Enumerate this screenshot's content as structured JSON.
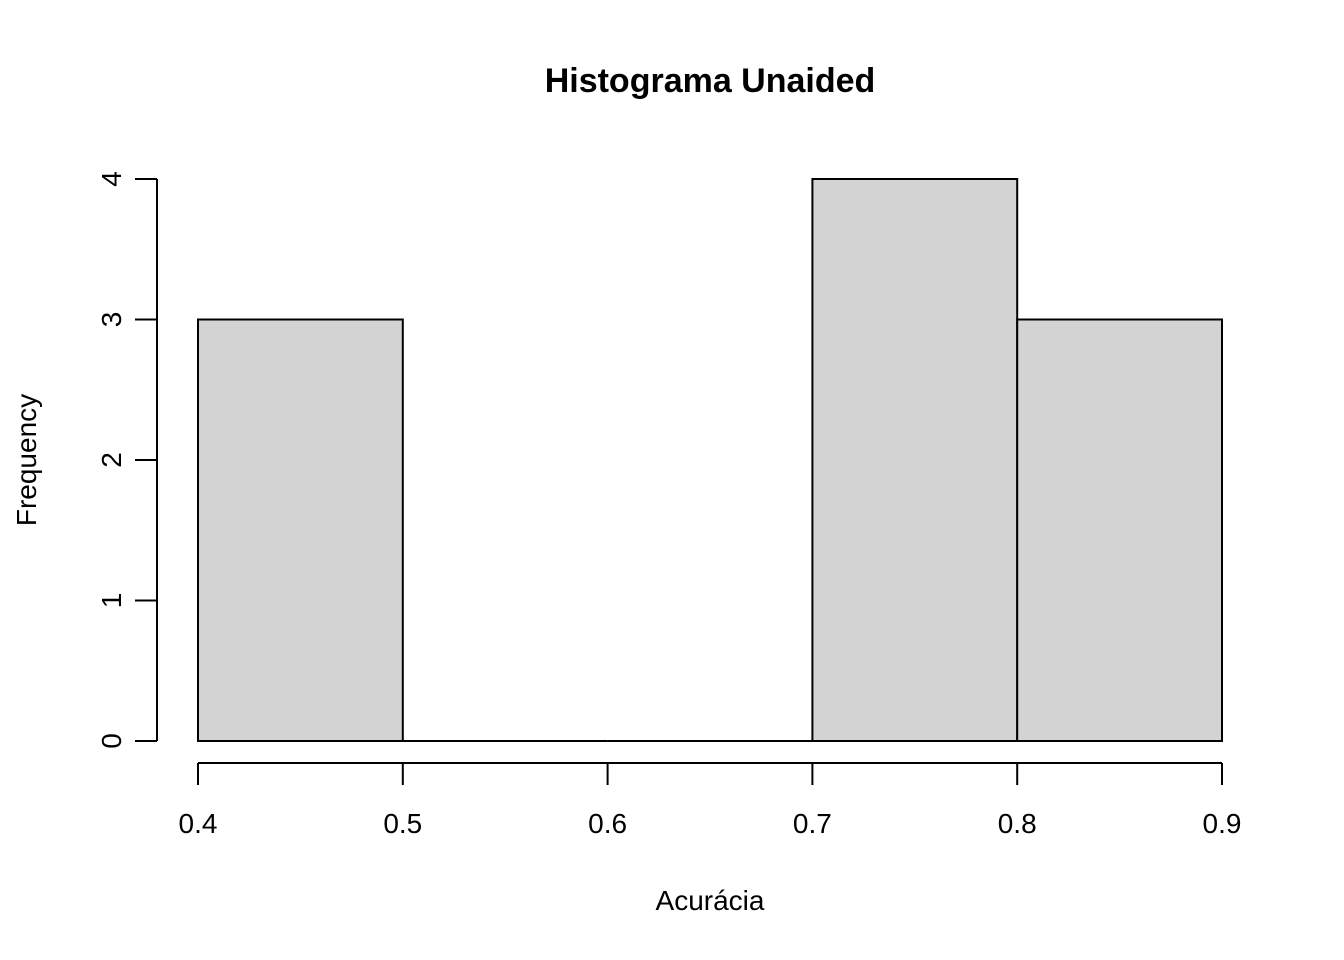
{
  "chart_data": {
    "type": "bar",
    "subtype": "histogram",
    "title": "Histograma Unaided",
    "xlabel": "Acurácia",
    "ylabel": "Frequency",
    "bins": [
      {
        "from": 0.4,
        "to": 0.5,
        "count": 3
      },
      {
        "from": 0.5,
        "to": 0.6,
        "count": 0
      },
      {
        "from": 0.6,
        "to": 0.7,
        "count": 0
      },
      {
        "from": 0.7,
        "to": 0.8,
        "count": 4
      },
      {
        "from": 0.8,
        "to": 0.9,
        "count": 3
      }
    ],
    "xlim": [
      0.4,
      0.9
    ],
    "ylim": [
      0,
      4
    ],
    "x_ticks": [
      "0.4",
      "0.5",
      "0.6",
      "0.7",
      "0.8",
      "0.9"
    ],
    "y_ticks": [
      "0",
      "1",
      "2",
      "3",
      "4"
    ],
    "bar_color": "#d3d3d3",
    "bar_border_color": "#000000",
    "grid": false,
    "legend": "none"
  }
}
